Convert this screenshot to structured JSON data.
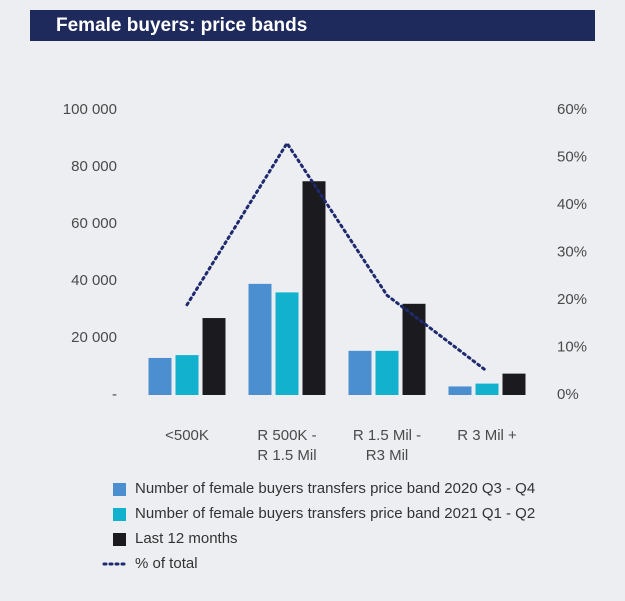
{
  "chart_data": {
    "type": "bar",
    "title": "Female buyers: price bands",
    "categories": [
      [
        "<500K"
      ],
      [
        "R 500K -",
        "R 1.5 Mil"
      ],
      [
        "R 1.5 Mil -",
        "R3 Mil"
      ],
      [
        "R 3 Mil +"
      ]
    ],
    "series": [
      {
        "name": "Number of female buyers transfers price band 2020 Q3 - Q4",
        "type": "bar",
        "color": "#4b8fd1",
        "values": [
          13000,
          39000,
          15500,
          3000
        ]
      },
      {
        "name": "Number of female buyers transfers price band 2021 Q1 - Q2",
        "type": "bar",
        "color": "#12b2cf",
        "values": [
          14000,
          36000,
          15500,
          4000
        ]
      },
      {
        "name": "Last 12 months",
        "type": "bar",
        "color": "#1b1a1e",
        "values": [
          27000,
          75000,
          32000,
          7500
        ]
      },
      {
        "name": "% of total",
        "type": "line",
        "axis": "y2",
        "color": "#1f2a6e",
        "values": [
          19,
          53,
          21,
          5
        ]
      }
    ],
    "ylim": [
      0,
      100000
    ],
    "yticks": [
      {
        "value": 0,
        "label": "-"
      },
      {
        "value": 20000,
        "label": "20 000"
      },
      {
        "value": 40000,
        "label": "40 000"
      },
      {
        "value": 60000,
        "label": "60 000"
      },
      {
        "value": 80000,
        "label": "80 000"
      },
      {
        "value": 100000,
        "label": "100 000"
      }
    ],
    "y2lim": [
      0,
      60
    ],
    "y2ticks": [
      {
        "value": 0,
        "label": "0%"
      },
      {
        "value": 10,
        "label": "10%"
      },
      {
        "value": 20,
        "label": "20%"
      },
      {
        "value": 30,
        "label": "30%"
      },
      {
        "value": 40,
        "label": "40%"
      },
      {
        "value": 50,
        "label": "50%"
      },
      {
        "value": 60,
        "label": "60%"
      }
    ]
  }
}
